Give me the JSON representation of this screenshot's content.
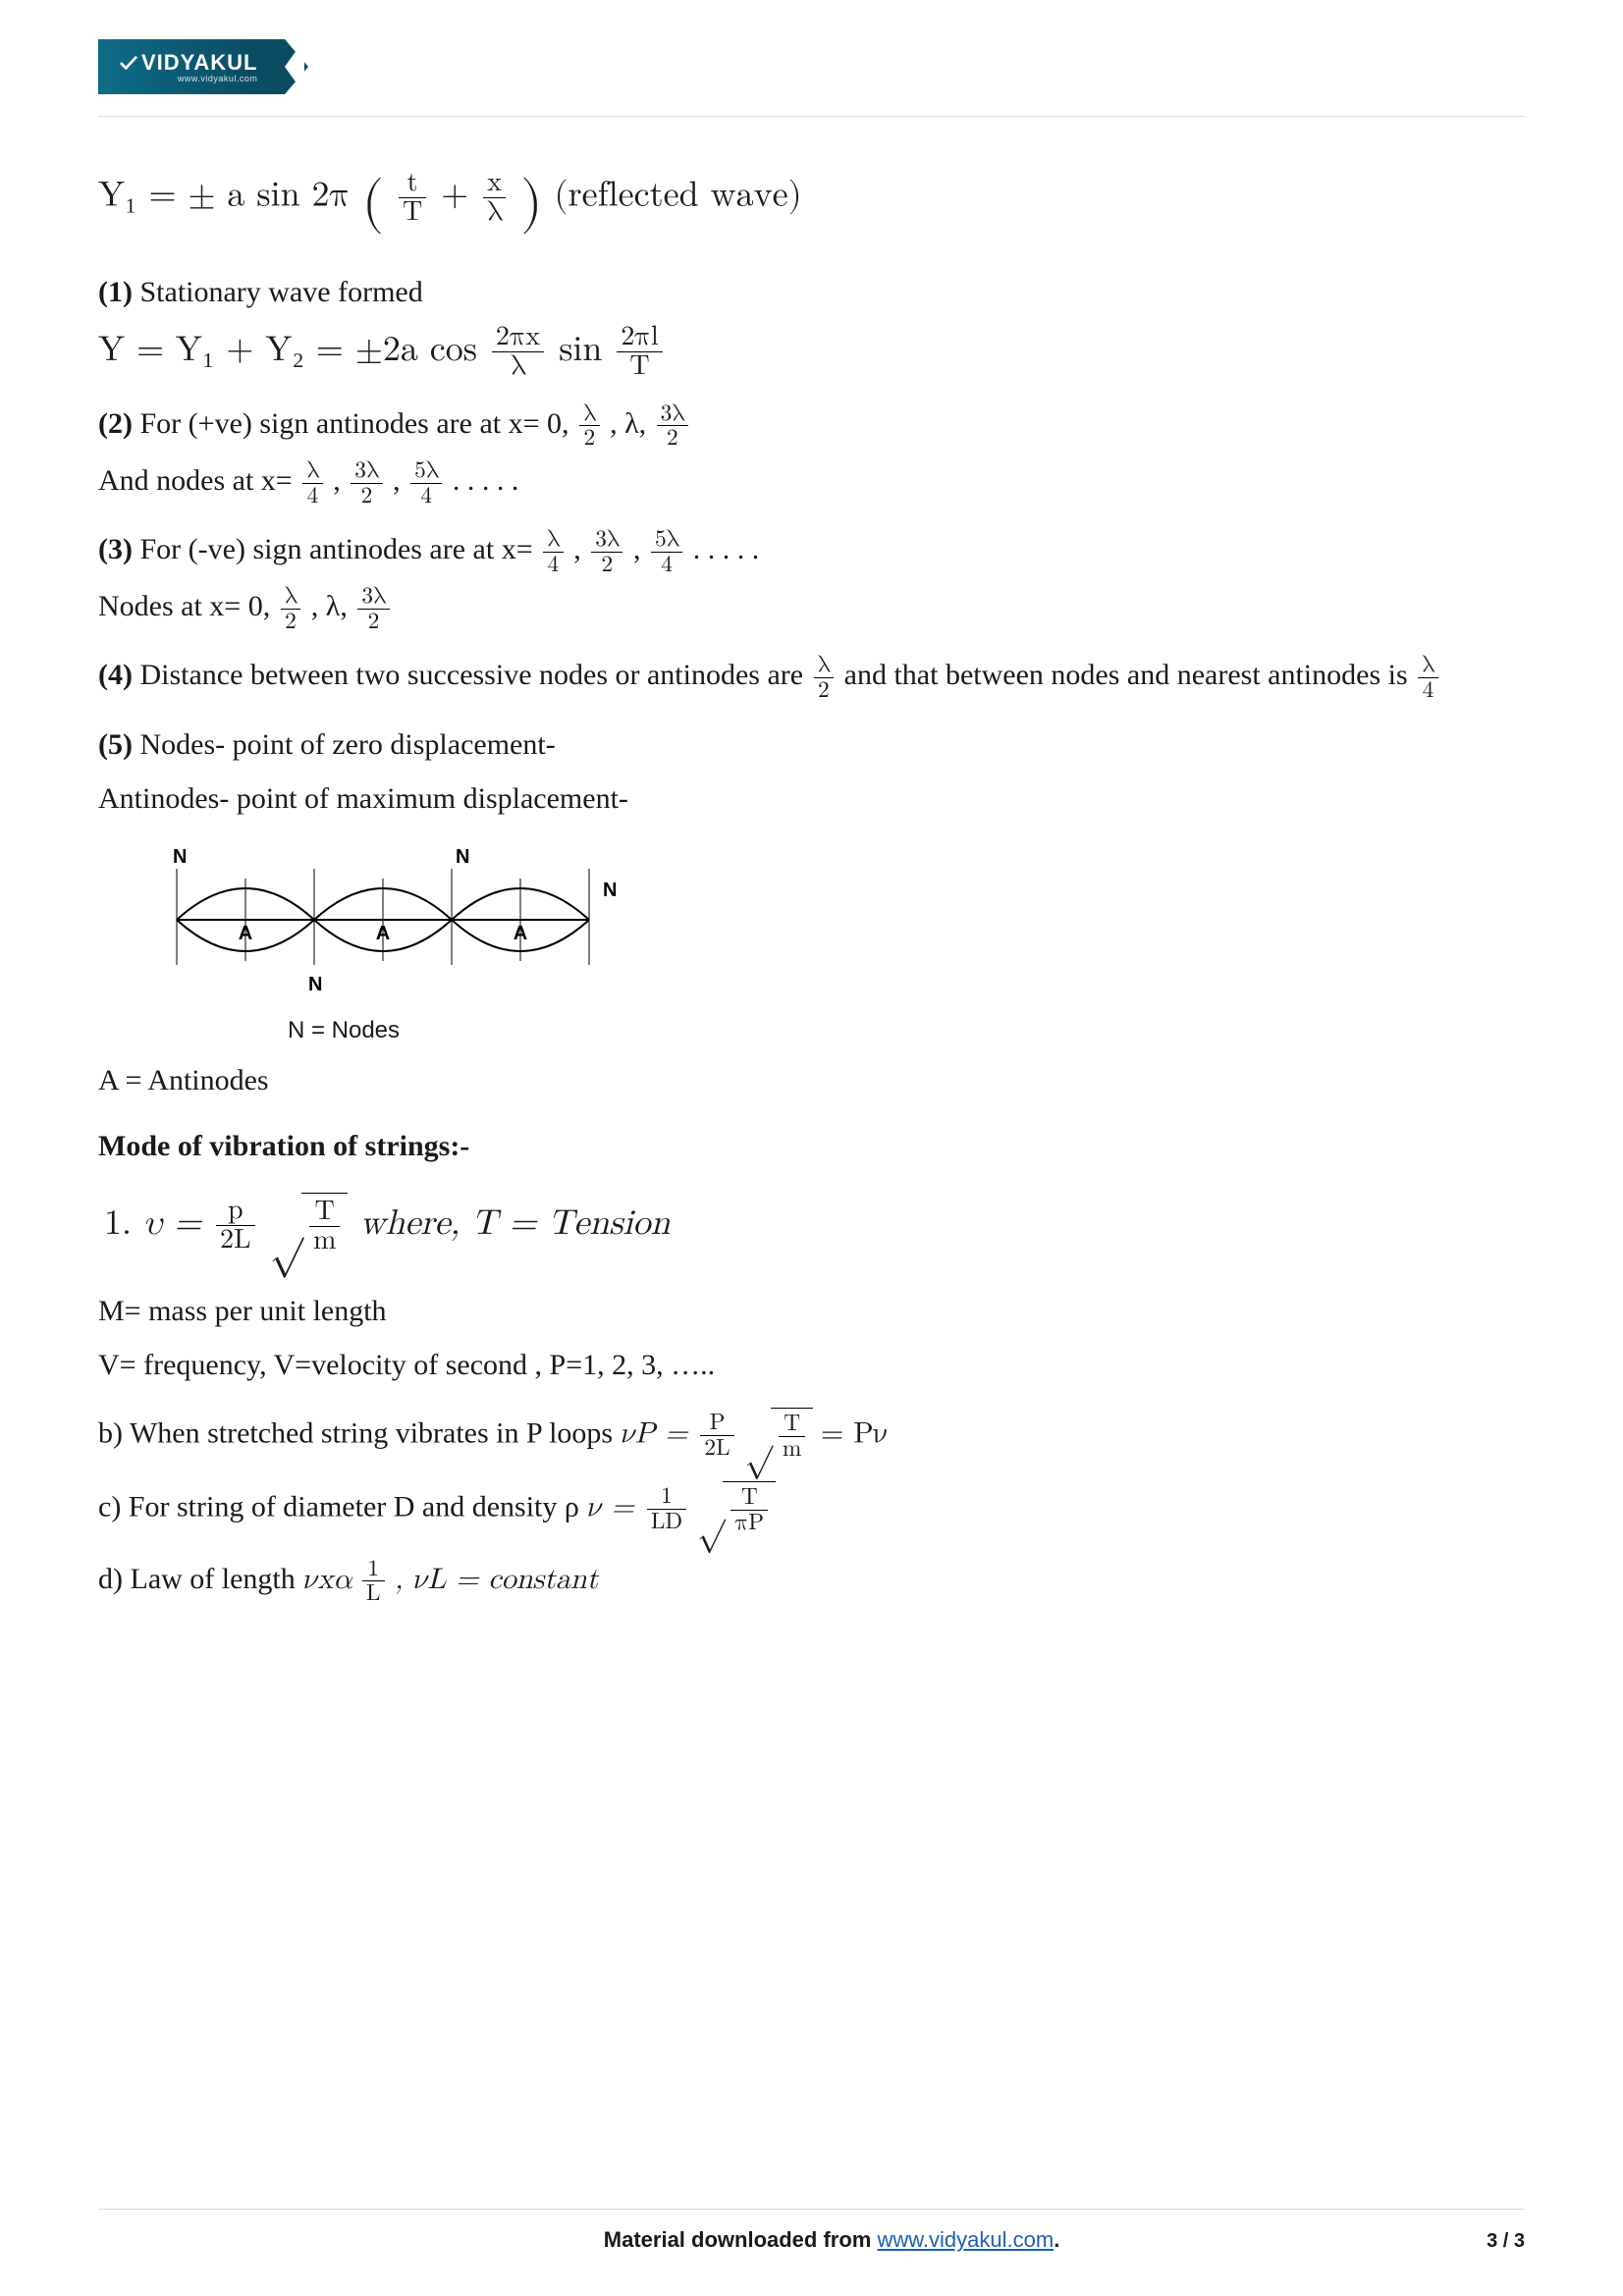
{
  "logo": {
    "brand": "VIDYAKUL",
    "sub": "www.vidyakul.com"
  },
  "eq_reflected": {
    "lhs": "Y₁ = ± a  sin 2π",
    "inside1_num": "t",
    "inside1_den": "T",
    "plus": "+",
    "inside2_num": "x",
    "inside2_den": "λ",
    "tail": " (reflected wave)"
  },
  "sec1": {
    "label": "(1)",
    "text": " Stationary wave formed",
    "eq_lhs": "Y = Y₁ + Y₂ = ±2a  cos ",
    "f1_num": "2πx",
    "f1_den": "λ",
    "mid": "  sin ",
    "f2_num": "2πl",
    "f2_den": "T"
  },
  "sec2": {
    "label": "(2)",
    "line1_a": " For (+ve) sign antinodes are at x= 0, ",
    "line1_b": ",  λ,   ",
    "line2_a": "And nodes at x= ",
    "comma": " ,    ",
    "ell": " . . . . ."
  },
  "sec3": {
    "label": "(3)",
    "line1_a": " For (-ve) sign antinodes are at x= ",
    "line2_a": "Nodes at x= 0, ",
    "mid": ",  λ,   "
  },
  "fracs": {
    "l2_num": "λ",
    "l2_den": "2",
    "l4_num": "λ",
    "l4_den": "4",
    "3l2_num": "3λ",
    "3l2_den": "2",
    "5l4_num": "5λ",
    "5l4_den": "4"
  },
  "sec4": {
    "label": "(4)",
    "a": " Distance between two successive nodes or antinodes are ",
    "b": " and that between nodes and nearest antinodes is "
  },
  "sec5": {
    "label": "(5)",
    "a": " Nodes- point of zero displacement-",
    "b": "Antinodes- point of maximum displacement-"
  },
  "wave": {
    "N": "N",
    "A": "A",
    "caption": "N = Nodes",
    "antinode_line": "A = Antinodes",
    "color": "#000000",
    "linew": 2,
    "loops": 3
  },
  "mode_heading": "Mode of vibration of strings:-",
  "mode1": {
    "num": "1.  ",
    "lhs": "υ = ",
    "p_num": "p",
    "p_den": "2L",
    "rad_num": "T",
    "rad_den": "m",
    "rhs": "  where,  T = Tension"
  },
  "mode_meta": {
    "m": "M= mass per unit length",
    "v": "V= frequency, V=velocity of second , P=1, 2, 3, ….."
  },
  "mode_b": {
    "lead": "b) When stretched string vibrates in P loops ",
    "lhs": "νP = ",
    "p_num": "P",
    "p_den": "2L",
    "rad_num": "T",
    "rad_den": "m",
    "eq": "   =  Pν"
  },
  "mode_c": {
    "lead": "c) For string of diameter D and density ρ ",
    "lhs": "ν = ",
    "p_num": "1",
    "p_den": "LD",
    "rad_num": "T",
    "rad_den": "πP"
  },
  "mode_d": {
    "lead": "d) Law of length ",
    "lhs": "νxα",
    "f_num": "1",
    "f_den": "L",
    "tail": " , νL = constant"
  },
  "footer": {
    "prefix": "Material downloaded from ",
    "link": "www.vidyakul.com",
    "suffix": ".",
    "page": "3 / 3"
  }
}
